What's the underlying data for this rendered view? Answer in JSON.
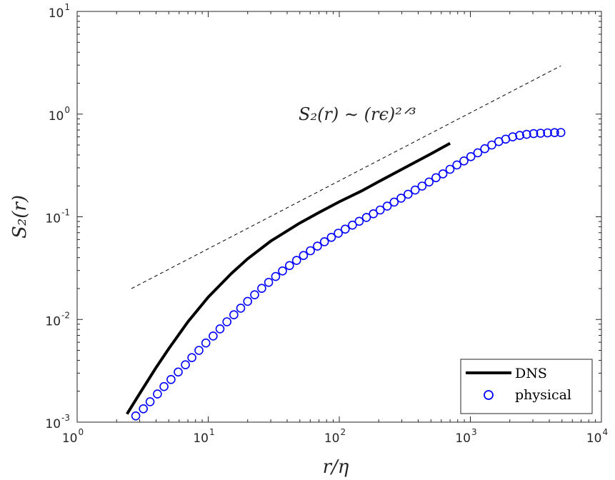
{
  "chart_data": {
    "type": "scatter",
    "xscale": "log",
    "yscale": "log",
    "xlim": [
      1,
      10000
    ],
    "ylim": [
      0.001,
      10
    ],
    "xticks": [
      {
        "base": "10",
        "exp": "0",
        "value": 1
      },
      {
        "base": "10",
        "exp": "1",
        "value": 10
      },
      {
        "base": "10",
        "exp": "2",
        "value": 100
      },
      {
        "base": "10",
        "exp": "3",
        "value": 1000
      },
      {
        "base": "10",
        "exp": "4",
        "value": 10000
      }
    ],
    "yticks": [
      {
        "base": "10",
        "exp": "-3",
        "value": 0.001
      },
      {
        "base": "10",
        "exp": "-2",
        "value": 0.01
      },
      {
        "base": "10",
        "exp": "-1",
        "value": 0.1
      },
      {
        "base": "10",
        "exp": "0",
        "value": 1
      },
      {
        "base": "10",
        "exp": "1",
        "value": 10
      }
    ],
    "xlabel": "r/η",
    "ylabel": "S₂(r)",
    "annotation": "S₂(r) ∼ (rϵ)²ᐟ³",
    "grid": false,
    "legend_position": "bottom-right",
    "series": [
      {
        "name": "DNS",
        "style": "line",
        "color": "#000000",
        "x": [
          2.4,
          3,
          4,
          5,
          7,
          10,
          15,
          20,
          30,
          50,
          70,
          100,
          150,
          200,
          300,
          500,
          700
        ],
        "y": [
          0.0012,
          0.0019,
          0.0034,
          0.0052,
          0.0095,
          0.0165,
          0.028,
          0.039,
          0.058,
          0.087,
          0.11,
          0.14,
          0.18,
          0.22,
          0.29,
          0.41,
          0.52
        ]
      },
      {
        "name": "physical",
        "style": "marker",
        "marker": "circle-open",
        "color": "#0000ff",
        "x": [
          2.8,
          3.2,
          3.6,
          4.1,
          4.6,
          5.2,
          5.9,
          6.7,
          7.5,
          8.5,
          9.6,
          10.9,
          12.3,
          13.9,
          15.7,
          17.7,
          20,
          22.6,
          25.6,
          28.9,
          32.7,
          36.9,
          41.7,
          47.2,
          53.3,
          60.2,
          68.1,
          77,
          87,
          98.3,
          111,
          126,
          142,
          161,
          182,
          205,
          232,
          262,
          296,
          335,
          379,
          428,
          484,
          547,
          618,
          699,
          790,
          893,
          1009,
          1140,
          1289,
          1457,
          1647,
          1862,
          2104,
          2379,
          2689,
          3039,
          3435,
          3883,
          4389,
          4900
        ],
        "y": [
          0.00115,
          0.00135,
          0.00158,
          0.00188,
          0.00222,
          0.0026,
          0.00308,
          0.00362,
          0.00425,
          0.005,
          0.0059,
          0.0069,
          0.0081,
          0.0095,
          0.0111,
          0.0129,
          0.015,
          0.0174,
          0.0201,
          0.023,
          0.0262,
          0.0297,
          0.0335,
          0.0376,
          0.042,
          0.0467,
          0.0518,
          0.0572,
          0.063,
          0.0692,
          0.0758,
          0.0829,
          0.0904,
          0.0985,
          0.107,
          0.1165,
          0.127,
          0.139,
          0.152,
          0.166,
          0.182,
          0.199,
          0.218,
          0.24,
          0.262,
          0.29,
          0.32,
          0.35,
          0.385,
          0.42,
          0.46,
          0.5,
          0.54,
          0.57,
          0.6,
          0.62,
          0.635,
          0.645,
          0.652,
          0.657,
          0.66,
          0.662
        ]
      },
      {
        "name": "",
        "style": "dashed",
        "color": "#000000",
        "x": [
          2.6,
          4900
        ],
        "y": [
          0.02,
          2.95
        ]
      }
    ]
  }
}
